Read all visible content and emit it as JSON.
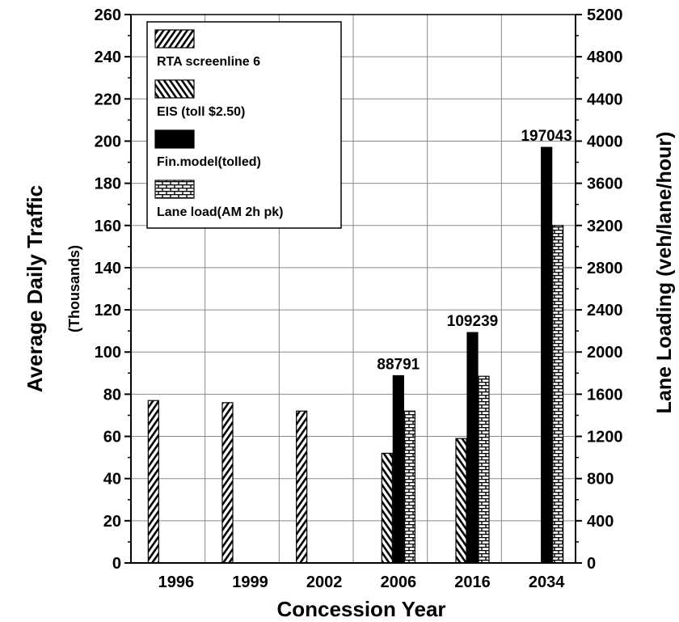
{
  "chart_data": {
    "type": "bar",
    "xlabel": "Concession Year",
    "ylabel": "Average Daily Traffic",
    "ylabel_sub": "(Thousands)",
    "y2label": "Lane Loading (veh/lane/hour)",
    "ylim": [
      0,
      260
    ],
    "y_ticks": [
      "0",
      "20",
      "40",
      "60",
      "80",
      "100",
      "120",
      "140",
      "160",
      "180",
      "200",
      "220",
      "240",
      "260"
    ],
    "y2lim": [
      0,
      5200
    ],
    "y2_ticks": [
      "0",
      "400",
      "800",
      "1200",
      "1600",
      "2000",
      "2400",
      "2800",
      "3200",
      "3600",
      "4000",
      "4400",
      "4800",
      "5200"
    ],
    "categories": [
      "1996",
      "1999",
      "2002",
      "2006",
      "2016",
      "2034"
    ],
    "grid": true,
    "legend_position": "top-left",
    "series": [
      {
        "name": "RTA screenline 6",
        "pattern": "hatch-forward",
        "axis": "left",
        "values": [
          77,
          76,
          72,
          null,
          null,
          null
        ]
      },
      {
        "name": "EIS (toll $2.50)",
        "pattern": "hatch-backward",
        "axis": "left",
        "values": [
          null,
          null,
          null,
          52,
          59,
          null
        ]
      },
      {
        "name": "Fin.model(tolled)",
        "pattern": "solid",
        "color": "#000000",
        "axis": "left",
        "values": [
          null,
          null,
          null,
          88.791,
          109.239,
          197.043
        ]
      },
      {
        "name": "Lane load(AM 2h pk)",
        "pattern": "brick",
        "axis": "right",
        "values": [
          null,
          null,
          null,
          1440,
          1770,
          3200
        ]
      }
    ],
    "annotations": [
      {
        "category": "2006",
        "text": "88791"
      },
      {
        "category": "2016",
        "text": "109239"
      },
      {
        "category": "2034",
        "text": "197043"
      }
    ]
  }
}
